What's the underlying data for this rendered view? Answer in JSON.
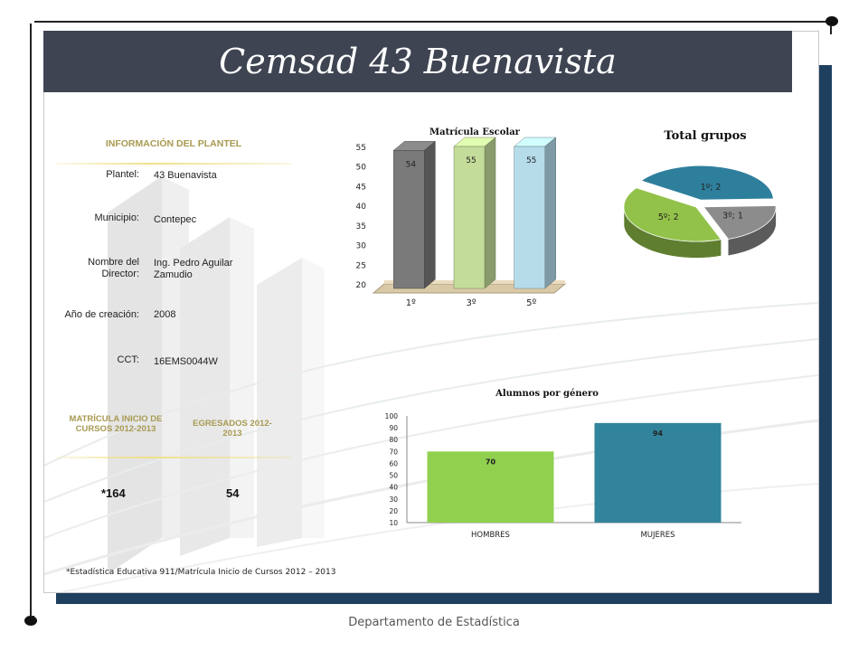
{
  "title": "Cemsad 43 Buenavista",
  "info": {
    "heading": "INFORMACIÓN DEL PLANTEL",
    "rows": [
      {
        "label": "Plantel:",
        "value": "43 Buenavista"
      },
      {
        "label": "Municipio:",
        "value": "Contepec"
      },
      {
        "label": "Nombre del Director:",
        "value": "Ing. Pedro Aguilar Zamudio"
      },
      {
        "label": "Año de creación:",
        "value": "2008"
      },
      {
        "label": "CCT:",
        "value": "16EMS0044W"
      }
    ]
  },
  "stats": {
    "matricula_heading": "MATRÍCULA INICIO DE CURSOS 2012-2013",
    "egresados_heading": "EGRESADOS 2012-2013",
    "matricula_value": "*164",
    "egresados_value": "54"
  },
  "footnote": "*Estadística Educativa 911/Matrícula Inicio de Cursos 2012 – 2013",
  "footer": "Departamento de Estadística",
  "colors": {
    "title_bar": "#3f4452",
    "frame_shadow": "#1f3f5f",
    "gold": "#a89a52"
  },
  "chart_data": [
    {
      "type": "bar",
      "title": "Matrícula Escolar",
      "categories": [
        "1º",
        "3º",
        "5º"
      ],
      "values": [
        54,
        55,
        55
      ],
      "ylim": [
        20,
        55
      ],
      "yticks": [
        20,
        25,
        30,
        35,
        40,
        45,
        50,
        55
      ],
      "colors": [
        "#7a7a7a",
        "#c4dc9a",
        "#b6dcea"
      ]
    },
    {
      "type": "pie",
      "title": "Total grupos",
      "labels": [
        "1º",
        "3º",
        "5º"
      ],
      "values": [
        2,
        1,
        2
      ],
      "data_labels": [
        "1º; 2",
        "3º; 1",
        "5º; 2"
      ],
      "colors": [
        "#2e7f9c",
        "#8c8c8c",
        "#92c24a"
      ]
    },
    {
      "type": "bar",
      "title": "Alumnos por género",
      "categories": [
        "HOMBRES",
        "MUJERES"
      ],
      "values": [
        70,
        94
      ],
      "ylim": [
        10,
        100
      ],
      "yticks": [
        10,
        20,
        30,
        40,
        50,
        60,
        70,
        80,
        90,
        100
      ],
      "colors": [
        "#92d050",
        "#31849b"
      ]
    }
  ]
}
